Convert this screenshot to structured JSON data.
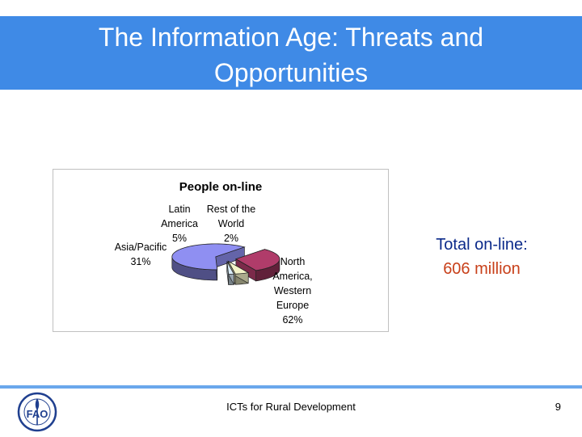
{
  "slide": {
    "title_line1": "The Information Age: Threats and",
    "title_line2": "Opportunities",
    "total_label": "Total on-line:",
    "total_value": "606 million",
    "footer_text": "ICTs for Rural Development",
    "page_number": "9"
  },
  "colors": {
    "title_bar": "#3f8ae6",
    "footer_rule": "#6aa7ec",
    "total_label": "#0b2a8a",
    "total_value": "#c8401a",
    "slice_north_america": "#8f8ff2",
    "slice_asia_pacific": "#b03c6a",
    "slice_latin_america": "#f3f3c8",
    "slice_rest_of_world": "#d9ecf8"
  },
  "logo": {
    "icon": "fao-logo-icon",
    "text": "FAO"
  },
  "chart_data": {
    "type": "pie",
    "title": "People on-line",
    "unit": "%",
    "slices": [
      {
        "label_lines": [
          "North",
          "America,",
          "Western",
          "Europe"
        ],
        "value": 62,
        "value_text": "62%"
      },
      {
        "label_lines": [
          "Asia/Pacific"
        ],
        "value": 31,
        "value_text": "31%"
      },
      {
        "label_lines": [
          "Latin",
          "America"
        ],
        "value": 5,
        "value_text": "5%"
      },
      {
        "label_lines": [
          "Rest of the",
          "World"
        ],
        "value": 2,
        "value_text": "2%"
      }
    ],
    "legend": "none",
    "style": "3d-exploded"
  }
}
